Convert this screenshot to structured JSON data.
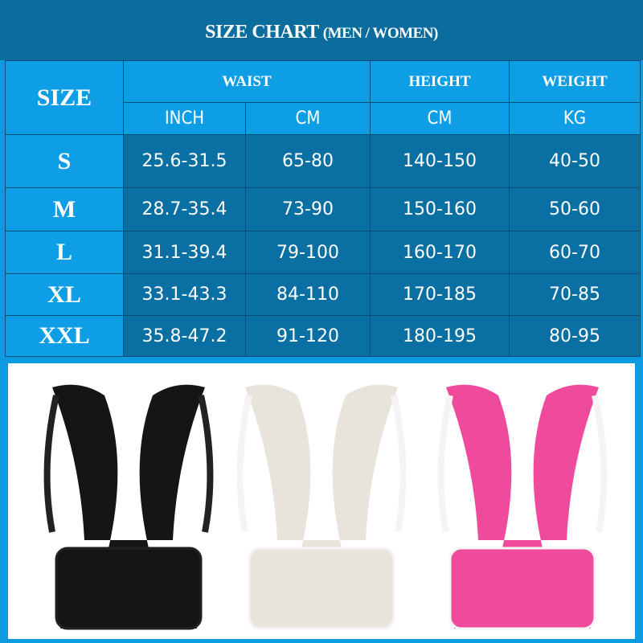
{
  "title": {
    "main": "SIZE CHART",
    "sub": "(MEN / WOMEN)"
  },
  "table": {
    "size_header": "SIZE",
    "groups": {
      "waist": "WAIST",
      "height": "HEIGHT",
      "weight": "WEIGHT"
    },
    "units": [
      "INCH",
      "CM",
      "CM",
      "KG"
    ],
    "rows": [
      {
        "size": "S",
        "waist_inch": "25.6-31.5",
        "waist_cm": "65-80",
        "height_cm": "140-150",
        "weight_kg": "40-50"
      },
      {
        "size": "M",
        "waist_inch": "28.7-35.4",
        "waist_cm": "73-90",
        "height_cm": "150-160",
        "weight_kg": "50-60"
      },
      {
        "size": "L",
        "waist_inch": "31.1-39.4",
        "waist_cm": "79-100",
        "height_cm": "160-170",
        "weight_kg": "60-70"
      },
      {
        "size": "XL",
        "waist_inch": "33.1-43.3",
        "waist_cm": "84-110",
        "height_cm": "170-185",
        "weight_kg": "70-85"
      },
      {
        "size": "XXL",
        "waist_inch": "35.8-47.2",
        "waist_cm": "91-120",
        "height_cm": "180-195",
        "weight_kg": "80-95"
      }
    ]
  },
  "products": [
    {
      "color_name": "black",
      "color": "#151515"
    },
    {
      "color_name": "white",
      "color": "#e8e4dc"
    },
    {
      "color_name": "pink",
      "color": "#f04a9c"
    }
  ],
  "colors": {
    "header_dark": "#0b6c9e",
    "cell_light": "#0e9ee6",
    "cell_dark": "#0a6fa3"
  }
}
